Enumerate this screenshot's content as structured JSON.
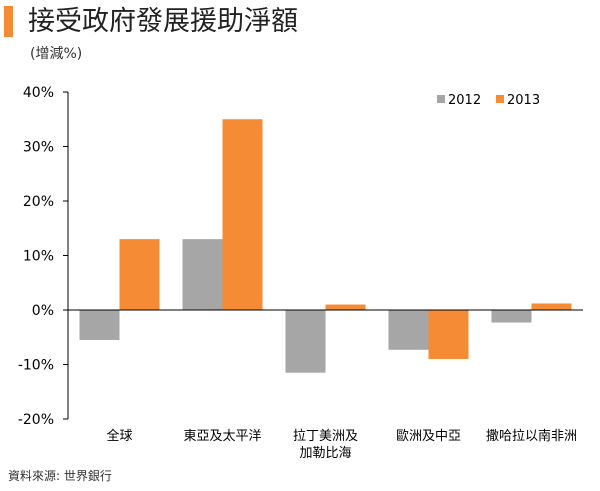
{
  "header": {
    "title": "接受政府發展援助淨額",
    "subtitle": "(增減%)",
    "source": "資料來源: 世界銀行"
  },
  "chart_data": {
    "type": "bar",
    "title": "接受政府發展援助淨額",
    "ylabel": "(增減%)",
    "xlabel": "",
    "categories": [
      [
        "全球"
      ],
      [
        "東亞及太平洋"
      ],
      [
        "拉丁美洲及",
        "加勒比海"
      ],
      [
        "歐洲及中亞"
      ],
      [
        "撒哈拉以南非洲"
      ]
    ],
    "series": [
      {
        "name": "2012",
        "color": "#a6a6a6",
        "values": [
          -5.5,
          13,
          -11.5,
          -7.3,
          -2.3
        ]
      },
      {
        "name": "2013",
        "color": "#f58b34",
        "values": [
          13,
          35,
          1,
          -9,
          1.2
        ]
      }
    ],
    "ylim": [
      -20,
      40
    ],
    "yticks": [
      -20,
      -10,
      0,
      10,
      20,
      30,
      40
    ],
    "ytick_labels": [
      "-20%",
      "-10%",
      "0%",
      "10%",
      "20%",
      "30%",
      "40%"
    ],
    "grid": false,
    "legend_position": "top-right"
  }
}
